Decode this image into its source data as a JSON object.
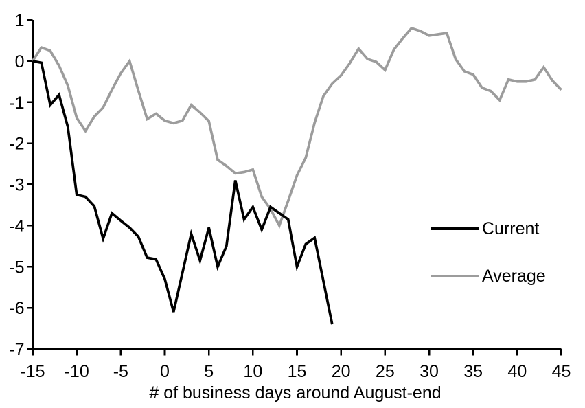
{
  "chart_data": {
    "type": "line",
    "title": "",
    "xlabel": "# of business days around August-end",
    "ylabel": "",
    "x_start": -15,
    "x_step": 1,
    "xlim": [
      -15,
      45
    ],
    "ylim": [
      -7,
      1
    ],
    "x_ticks": [
      -15,
      -10,
      -5,
      0,
      5,
      10,
      15,
      20,
      25,
      30,
      35,
      40,
      45
    ],
    "y_ticks": [
      1,
      0,
      -1,
      -2,
      -3,
      -4,
      -5,
      -6,
      -7
    ],
    "grid": false,
    "legend_position": "right-middle",
    "series": [
      {
        "name": "Current",
        "color": "#000000",
        "x_range": [
          -15,
          19
        ],
        "values": [
          0,
          -0.04,
          -1.07,
          -0.82,
          -1.6,
          -3.25,
          -3.3,
          -3.53,
          -4.32,
          -3.7,
          -3.88,
          -4.05,
          -4.27,
          -4.78,
          -4.82,
          -5.3,
          -6.1,
          -5.15,
          -4.2,
          -4.85,
          -4.05,
          -5.0,
          -4.5,
          -2.9,
          -3.85,
          -3.55,
          -4.1,
          -3.55,
          -3.7,
          -3.85,
          -5.0,
          -4.45,
          -4.3,
          -5.35,
          -6.4
        ]
      },
      {
        "name": "Average",
        "color": "#9C9C9C",
        "x_range": [
          -15,
          45
        ],
        "values": [
          0,
          0.33,
          0.25,
          -0.11,
          -0.6,
          -1.38,
          -1.7,
          -1.35,
          -1.13,
          -0.7,
          -0.3,
          0.0,
          -0.72,
          -1.41,
          -1.28,
          -1.45,
          -1.51,
          -1.45,
          -1.07,
          -1.25,
          -1.46,
          -2.4,
          -2.55,
          -2.73,
          -2.7,
          -2.64,
          -3.3,
          -3.6,
          -4.0,
          -3.4,
          -2.78,
          -2.35,
          -1.5,
          -0.85,
          -0.55,
          -0.35,
          -0.05,
          0.3,
          0.05,
          -0.02,
          -0.22,
          0.28,
          0.55,
          0.8,
          0.73,
          0.62,
          0.65,
          0.68,
          0.05,
          -0.25,
          -0.33,
          -0.65,
          -0.73,
          -0.95,
          -0.45,
          -0.5,
          -0.5,
          -0.45,
          -0.15,
          -0.48,
          -0.7
        ]
      }
    ],
    "axis_color": "#000000"
  }
}
